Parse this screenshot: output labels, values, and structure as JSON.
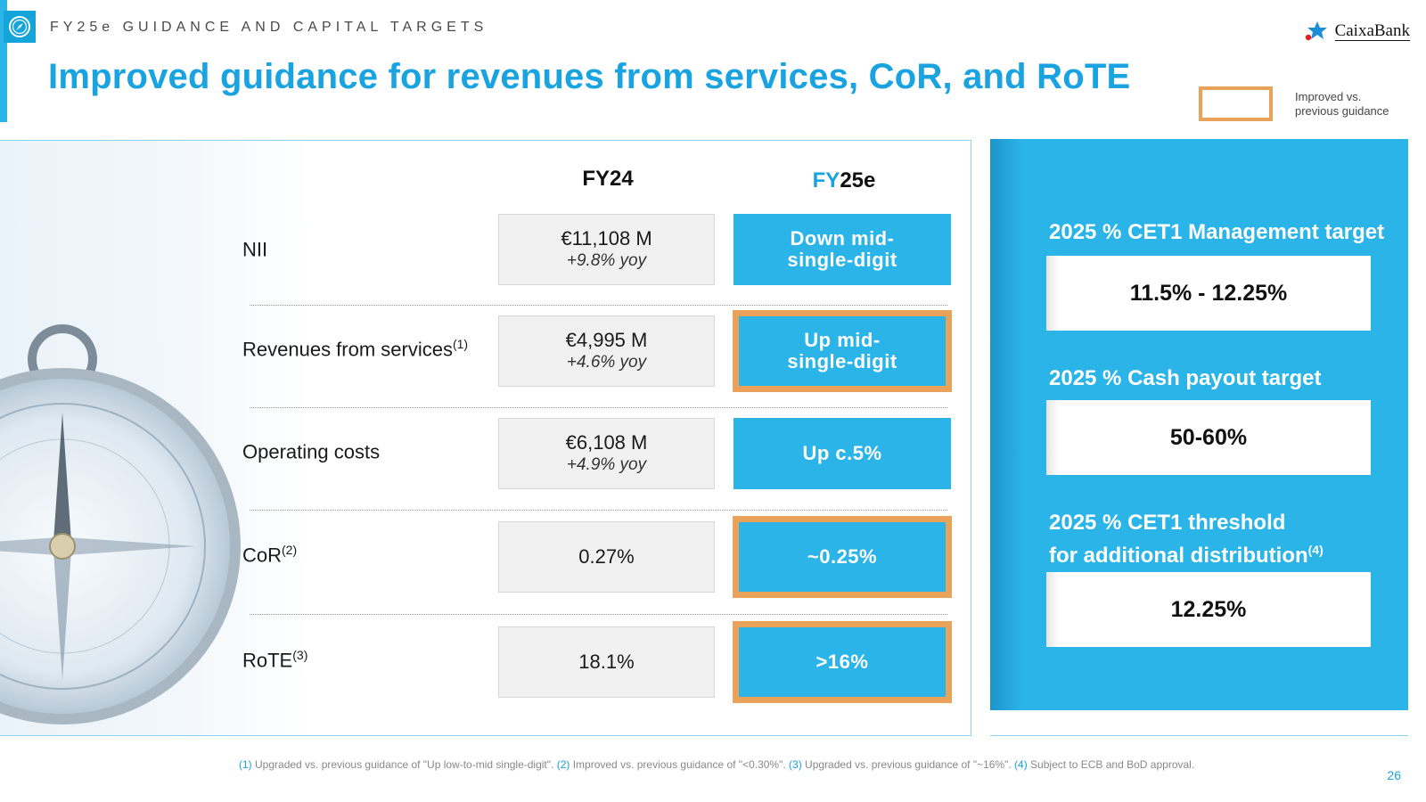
{
  "header": {
    "section_label": "FY25e GUIDANCE AND CAPITAL TARGETS",
    "title": "Improved guidance for revenues from services, CoR, and RoTE",
    "icon": "compass-icon",
    "logo_text": "CaixaBank"
  },
  "legend": {
    "label_line1": "Improved vs.",
    "label_line2": "previous guidance",
    "color": "#e9a25a"
  },
  "table": {
    "columns": {
      "fy24": "FY24",
      "fy25_prefix": "FY",
      "fy25_suffix": "25e"
    },
    "rows": [
      {
        "label": "NII",
        "sup": "",
        "fy24_value": "€11,108 M",
        "fy24_yoy": "+9.8% yoy",
        "fy25_line1": "Down mid-",
        "fy25_line2": "single-digit",
        "improved": false
      },
      {
        "label": "Revenues from services",
        "sup": "(1)",
        "fy24_value": "€4,995 M",
        "fy24_yoy": "+4.6% yoy",
        "fy25_line1": "Up mid-",
        "fy25_line2": "single-digit",
        "improved": true
      },
      {
        "label": "Operating costs",
        "sup": "",
        "fy24_value": "€6,108 M",
        "fy24_yoy": "+4.9% yoy",
        "fy25_line1": "Up c.5%",
        "fy25_line2": "",
        "improved": false
      },
      {
        "label": "CoR",
        "sup": "(2)",
        "fy24_value": "0.27%",
        "fy24_yoy": "",
        "fy25_line1": "~0.25%",
        "fy25_line2": "",
        "improved": true
      },
      {
        "label": "RoTE",
        "sup": "(3)",
        "fy24_value": "18.1%",
        "fy24_yoy": "",
        "fy25_line1": ">16%",
        "fy25_line2": "",
        "improved": true
      }
    ]
  },
  "targets": [
    {
      "label_line1": "2025 % CET1 Management target",
      "label_line2": "",
      "sup": "",
      "value": "11.5% - 12.25%"
    },
    {
      "label_line1": "2025 % Cash payout target",
      "label_line2": "",
      "sup": "",
      "value": "50-60%"
    },
    {
      "label_line1": "2025 % CET1 threshold",
      "label_line2": "for additional distribution",
      "sup": "(4)",
      "value": "12.25%"
    }
  ],
  "footnotes": [
    {
      "num": "(1)",
      "text": " Upgraded vs. previous guidance of \"Up low-to-mid single-digit\". "
    },
    {
      "num": "(2)",
      "text": " Improved vs. previous guidance of \"<0.30%\". "
    },
    {
      "num": "(3)",
      "text": " Upgraded vs. previous guidance of \"~16%\". "
    },
    {
      "num": "(4)",
      "text": " Subject to ECB and BoD approval."
    }
  ],
  "page_number": "26",
  "colors": {
    "accent": "#19a3e0",
    "box_blue": "#2ab4e8",
    "improved_border": "#e9a25a"
  }
}
